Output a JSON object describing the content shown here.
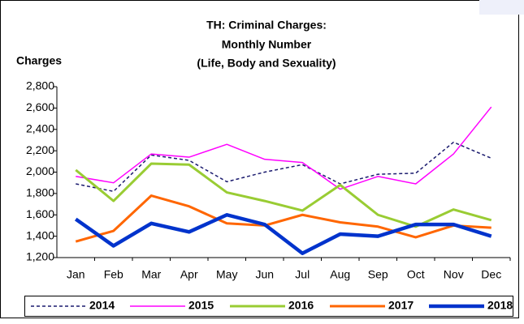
{
  "chart_data": {
    "type": "line",
    "title_lines": [
      "TH: Criminal Charges:",
      "Monthly Number",
      "(Life, Body and Sexuality)"
    ],
    "y_label": "Charges",
    "categories": [
      "Jan",
      "Feb",
      "Mar",
      "Apr",
      "May",
      "Jun",
      "Jul",
      "Aug",
      "Sep",
      "Oct",
      "Nov",
      "Dec"
    ],
    "series": [
      {
        "name": "2014",
        "color": "#1a1a6e",
        "line_width": 1.5,
        "dashed": true,
        "values": [
          1890,
          1820,
          2160,
          2110,
          1910,
          2000,
          2070,
          1890,
          1980,
          1990,
          2280,
          2130
        ]
      },
      {
        "name": "2015",
        "color": "#ff00ff",
        "line_width": 1.5,
        "dashed": false,
        "values": [
          1960,
          1900,
          2170,
          2140,
          2260,
          2120,
          2090,
          1840,
          1960,
          1890,
          2170,
          2610
        ]
      },
      {
        "name": "2016",
        "color": "#99cc33",
        "line_width": 3,
        "dashed": false,
        "values": [
          2020,
          1730,
          2080,
          2070,
          1810,
          1730,
          1640,
          1880,
          1600,
          1490,
          1650,
          1550
        ]
      },
      {
        "name": "2017",
        "color": "#ff6600",
        "line_width": 3,
        "dashed": false,
        "values": [
          1350,
          1450,
          1780,
          1680,
          1520,
          1500,
          1600,
          1530,
          1490,
          1390,
          1500,
          1480
        ]
      },
      {
        "name": "2018",
        "color": "#0033cc",
        "line_width": 4.5,
        "dashed": false,
        "values": [
          1560,
          1310,
          1520,
          1440,
          1600,
          1510,
          1240,
          1420,
          1400,
          1510,
          1510,
          1400
        ]
      }
    ],
    "ylim": [
      1200,
      2800
    ],
    "yticks": [
      {
        "value": 1200,
        "label": "1,200"
      },
      {
        "value": 1400,
        "label": "1,400"
      },
      {
        "value": 1600,
        "label": "1,600"
      },
      {
        "value": 1800,
        "label": "1,800"
      },
      {
        "value": 2000,
        "label": "2,000"
      },
      {
        "value": 2200,
        "label": "2,200"
      },
      {
        "value": 2400,
        "label": "2,400"
      },
      {
        "value": 2600,
        "label": "2,600"
      },
      {
        "value": 2800,
        "label": "2,800"
      }
    ]
  }
}
